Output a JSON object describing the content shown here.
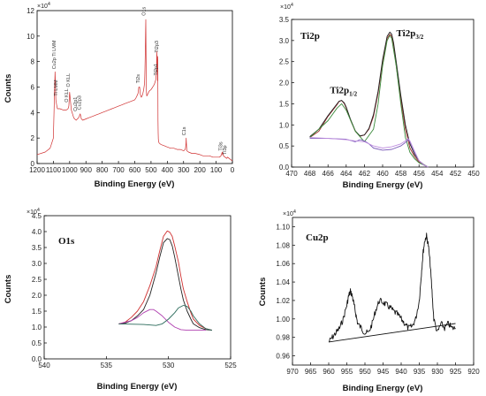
{
  "chart_data": [
    {
      "id": "survey",
      "type": "line",
      "xlabel": "Binding Energy (eV)",
      "ylabel": "Counts",
      "y_exponent": "×10",
      "y_exponent_power": "4",
      "xlim": [
        1200,
        0
      ],
      "ylim": [
        0,
        12
      ],
      "xticks": [
        1200,
        1100,
        1000,
        900,
        800,
        700,
        600,
        500,
        400,
        300,
        200,
        100,
        0
      ],
      "yticks": [
        0,
        2,
        4,
        6,
        8,
        10,
        12
      ],
      "series": [
        {
          "color": "#d03030",
          "x": [
            1200,
            1150,
            1120,
            1110,
            1100,
            1095,
            1090,
            1085,
            1080,
            1075,
            1060,
            1040,
            1020,
            1010,
            1005,
            1000,
            990,
            980,
            975,
            970,
            960,
            945,
            935,
            928,
            920,
            900,
            880,
            860,
            840,
            820,
            800,
            780,
            760,
            740,
            720,
            700,
            680,
            660,
            640,
            620,
            600,
            590,
            580,
            575,
            570,
            565,
            560,
            555,
            550,
            545,
            540,
            538,
            535,
            533,
            532,
            531,
            530,
            529,
            528,
            526,
            522,
            518,
            515,
            510,
            500,
            490,
            480,
            470,
            466,
            464,
            462,
            460,
            459,
            458,
            457,
            456,
            455,
            453,
            450,
            440,
            420,
            400,
            380,
            360,
            340,
            320,
            300,
            290,
            287,
            285,
            284,
            282,
            280,
            270,
            250,
            230,
            200,
            180,
            160,
            140,
            120,
            100,
            90,
            80,
            70,
            65,
            62,
            60,
            58,
            55,
            45,
            35,
            30,
            20,
            10,
            0
          ],
          "y": [
            0.7,
            0.9,
            1.2,
            1.6,
            2.0,
            4.5,
            7.2,
            5.0,
            4.6,
            4.3,
            4.3,
            4.2,
            4.2,
            4.3,
            4.5,
            5.6,
            4.2,
            3.8,
            3.6,
            3.5,
            3.4,
            3.6,
            3.9,
            3.5,
            3.4,
            3.5,
            3.6,
            3.7,
            3.8,
            3.9,
            4.0,
            4.1,
            4.2,
            4.3,
            4.4,
            4.5,
            4.6,
            4.7,
            4.8,
            4.9,
            5.0,
            5.2,
            5.5,
            6.0,
            6.0,
            5.4,
            5.2,
            5.3,
            5.5,
            5.8,
            6.3,
            7.0,
            9.0,
            10.5,
            11.3,
            9.5,
            7.5,
            6.0,
            5.5,
            5.3,
            5.4,
            5.5,
            5.6,
            5.7,
            5.8,
            6.0,
            6.2,
            6.6,
            7.5,
            8.8,
            7.8,
            6.5,
            8.4,
            5.5,
            3.4,
            2.4,
            1.9,
            1.7,
            1.6,
            1.5,
            1.4,
            1.3,
            1.2,
            1.2,
            1.1,
            1.1,
            1.0,
            1.1,
            1.3,
            1.6,
            2.0,
            1.4,
            1.0,
            0.9,
            0.8,
            0.8,
            0.7,
            0.6,
            0.6,
            0.6,
            0.5,
            0.5,
            0.5,
            0.5,
            0.6,
            0.8,
            0.9,
            0.7,
            0.8,
            0.6,
            0.5,
            0.4,
            0.5,
            0.4,
            0.3,
            0.2
          ]
        }
      ],
      "annotations": [
        {
          "text": "Cu2p Ti LMM",
          "x": 1085,
          "y": 7.4
        },
        {
          "text": "Ti LMM",
          "x": 1075,
          "y": 5.3
        },
        {
          "text": "O KLL",
          "x": 1000,
          "y": 6.0
        },
        {
          "text": "O KLL",
          "x": 1010,
          "y": 4.8
        },
        {
          "text": "Cu2p1",
          "x": 955,
          "y": 4.1
        },
        {
          "text": "Cu2p3",
          "x": 932,
          "y": 4.2
        },
        {
          "text": "O1s",
          "x": 535,
          "y": 11.6
        },
        {
          "text": "Ti2s",
          "x": 570,
          "y": 6.3
        },
        {
          "text": "Ti2p3",
          "x": 457,
          "y": 8.7
        },
        {
          "text": "Ti2p1",
          "x": 461,
          "y": 6.9
        },
        {
          "text": "C1s",
          "x": 288,
          "y": 2.2
        },
        {
          "text": "Ti3s",
          "x": 63,
          "y": 1.0
        },
        {
          "text": "Ti3p",
          "x": 38,
          "y": 0.7
        }
      ]
    },
    {
      "id": "ti2p",
      "type": "line",
      "title": "Ti2p",
      "xlabel": "Binding Energy (eV)",
      "ylabel": "",
      "y_exponent": "×10",
      "y_exponent_power": "4",
      "xlim": [
        470,
        450
      ],
      "ylim": [
        0,
        3.5
      ],
      "xticks": [
        470,
        468,
        466,
        464,
        462,
        460,
        458,
        456,
        454,
        452,
        450
      ],
      "yticks": [
        0,
        0.5,
        1.0,
        1.5,
        2.0,
        2.5,
        3.0,
        3.5
      ],
      "peak_labels": [
        {
          "text": "Ti2p",
          "sub": "1/2",
          "x": 464.3,
          "y": 1.75
        },
        {
          "text": "Ti2p",
          "sub": "3/2",
          "x": 457.0,
          "y": 3.1
        }
      ],
      "series": [
        {
          "color": "#a03030",
          "x": [
            468,
            467,
            466,
            465,
            464.8,
            464.5,
            464.2,
            464,
            463.5,
            463,
            462.5,
            462,
            461.5,
            461,
            460.5,
            460,
            459.5,
            459.2,
            459,
            458.8,
            458.5,
            458,
            457.5,
            457,
            456.5,
            456,
            455.5,
            455
          ],
          "y": [
            0.7,
            0.85,
            1.2,
            1.48,
            1.55,
            1.58,
            1.5,
            1.4,
            1.1,
            0.85,
            0.73,
            0.76,
            0.9,
            1.2,
            1.75,
            2.5,
            3.05,
            3.15,
            3.1,
            2.9,
            2.4,
            1.6,
            0.9,
            0.45,
            0.25,
            0.12,
            0.05,
            0.0
          ]
        },
        {
          "color": "#222222",
          "x": [
            468,
            467,
            466,
            465,
            464.8,
            464.5,
            464.2,
            464,
            463.5,
            463,
            462.5,
            462,
            461.5,
            461,
            460.5,
            460,
            459.5,
            459.2,
            459,
            458.8,
            458.5,
            458,
            457.5,
            457,
            456.5,
            456,
            455.5,
            455
          ],
          "y": [
            0.72,
            0.9,
            1.22,
            1.5,
            1.56,
            1.58,
            1.52,
            1.42,
            1.12,
            0.86,
            0.74,
            0.76,
            0.92,
            1.25,
            1.8,
            2.55,
            3.1,
            3.2,
            3.15,
            2.95,
            2.5,
            1.7,
            1.0,
            0.55,
            0.3,
            0.15,
            0.06,
            0.0
          ]
        },
        {
          "color": "#3a8a3a",
          "x": [
            468,
            466,
            465,
            464.5,
            464,
            463,
            462,
            461,
            460.5,
            460,
            459.5,
            459.2,
            459,
            458.5,
            458,
            457.5,
            457,
            456.5,
            456,
            455
          ],
          "y": [
            0.7,
            1.1,
            1.4,
            1.5,
            1.35,
            0.85,
            0.6,
            0.9,
            1.5,
            2.4,
            3.0,
            3.12,
            3.05,
            2.4,
            1.5,
            0.7,
            0.35,
            0.2,
            0.1,
            0.0
          ]
        },
        {
          "color": "#7a5ab8",
          "x": [
            468,
            466,
            464,
            463,
            462.5,
            462,
            461.5,
            461,
            460,
            459,
            458,
            457.5,
            457.2,
            457,
            456.5,
            456,
            455.5,
            455
          ],
          "y": [
            0.68,
            0.68,
            0.66,
            0.6,
            0.65,
            0.62,
            0.55,
            0.45,
            0.4,
            0.42,
            0.5,
            0.58,
            0.65,
            0.6,
            0.35,
            0.15,
            0.05,
            0.0
          ]
        },
        {
          "color": "#c090e0",
          "x": [
            468,
            466,
            464,
            463,
            462,
            461,
            460,
            459,
            458,
            457.5,
            457.2,
            457,
            456.5,
            456,
            455.5,
            455
          ],
          "y": [
            0.7,
            0.68,
            0.65,
            0.62,
            0.6,
            0.5,
            0.45,
            0.48,
            0.55,
            0.62,
            0.68,
            0.62,
            0.38,
            0.15,
            0.05,
            0.0
          ]
        }
      ]
    },
    {
      "id": "o1s",
      "type": "line",
      "title": "O1s",
      "xlabel": "Binding Energy (eV)",
      "ylabel": "Counts",
      "y_exponent": "×10",
      "y_exponent_power": "4",
      "xlim": [
        540,
        525
      ],
      "ylim": [
        0,
        4.5
      ],
      "xticks": [
        540,
        535,
        530,
        525
      ],
      "yticks": [
        0,
        0.5,
        1.0,
        1.5,
        2.0,
        2.5,
        3.0,
        3.5,
        4.0,
        4.5
      ],
      "series": [
        {
          "color": "#d03030",
          "x": [
            534,
            533.5,
            533,
            532.5,
            532,
            531.5,
            531,
            530.7,
            530.4,
            530.1,
            529.9,
            529.7,
            529.5,
            529.2,
            529,
            528.8,
            528.5,
            528.2,
            528,
            527.5,
            527,
            526.5
          ],
          "y": [
            1.1,
            1.15,
            1.3,
            1.5,
            1.8,
            2.3,
            2.9,
            3.4,
            3.85,
            4.02,
            3.98,
            3.85,
            3.55,
            3.05,
            2.6,
            2.2,
            1.8,
            1.45,
            1.25,
            1.05,
            0.95,
            0.9
          ]
        },
        {
          "color": "#222222",
          "x": [
            534,
            533.5,
            533,
            532.5,
            532,
            531.5,
            531,
            530.7,
            530.4,
            530.1,
            529.9,
            529.7,
            529.5,
            529.2,
            529,
            528.8,
            528.5,
            528.2,
            528,
            527.5,
            527,
            526.5
          ],
          "y": [
            1.1,
            1.12,
            1.2,
            1.35,
            1.55,
            2.0,
            2.7,
            3.2,
            3.65,
            3.78,
            3.75,
            3.55,
            3.2,
            2.6,
            2.2,
            1.85,
            1.5,
            1.25,
            1.1,
            0.98,
            0.92,
            0.9
          ]
        },
        {
          "color": "#b040b0",
          "x": [
            534,
            533,
            532.5,
            532,
            531.5,
            531.2,
            531,
            530.5,
            530,
            529.5,
            529,
            528.5,
            528,
            527
          ],
          "y": [
            1.1,
            1.2,
            1.3,
            1.45,
            1.55,
            1.55,
            1.5,
            1.35,
            1.15,
            1.0,
            0.92,
            0.9,
            0.9,
            0.9
          ]
        },
        {
          "color": "#2a6a5a",
          "x": [
            534,
            532,
            531,
            530.5,
            530,
            529.5,
            529.2,
            528.8,
            528.5,
            528.2,
            528,
            527.5,
            527,
            526.5
          ],
          "y": [
            1.1,
            1.08,
            1.05,
            1.1,
            1.25,
            1.45,
            1.6,
            1.68,
            1.65,
            1.5,
            1.35,
            1.1,
            0.95,
            0.9
          ]
        }
      ]
    },
    {
      "id": "cu2p",
      "type": "line",
      "title": "Cu2p",
      "xlabel": "Binding Energy (eV)",
      "ylabel": "Counts",
      "y_exponent": "×10",
      "y_exponent_power": "4",
      "xlim": [
        970,
        920
      ],
      "ylim": [
        0.95,
        1.11
      ],
      "xticks": [
        970,
        965,
        960,
        955,
        950,
        945,
        940,
        935,
        930,
        925,
        920
      ],
      "yticks": [
        0.96,
        0.98,
        1.0,
        1.02,
        1.04,
        1.06,
        1.08,
        1.1
      ],
      "series": [
        {
          "color": "#111111",
          "noisy": true,
          "x": [
            960,
            959,
            958,
            957,
            956,
            955,
            954.5,
            954,
            953.5,
            953,
            952.5,
            952,
            951,
            950,
            949,
            948,
            947,
            946,
            945,
            944,
            943,
            942,
            941,
            940,
            939,
            938,
            937,
            936,
            935,
            934.5,
            934,
            933.5,
            933,
            932.5,
            932,
            931.5,
            931,
            930,
            929,
            928,
            927,
            926,
            925
          ],
          "y": [
            0.975,
            0.98,
            0.985,
            0.99,
            1.0,
            1.015,
            1.025,
            1.03,
            1.025,
            1.015,
            1.005,
            0.995,
            0.99,
            0.985,
            0.985,
            0.995,
            1.01,
            1.02,
            1.018,
            1.015,
            1.012,
            1.008,
            1.005,
            1.0,
            0.995,
            0.99,
            0.992,
            1.0,
            1.02,
            1.045,
            1.07,
            1.085,
            1.09,
            1.08,
            1.06,
            1.03,
            1.0,
            0.985,
            0.995,
            0.99,
            0.995,
            0.99,
            0.99
          ]
        },
        {
          "color": "#111111",
          "x": [
            960,
            925
          ],
          "y": [
            0.975,
            0.995
          ]
        }
      ]
    }
  ]
}
